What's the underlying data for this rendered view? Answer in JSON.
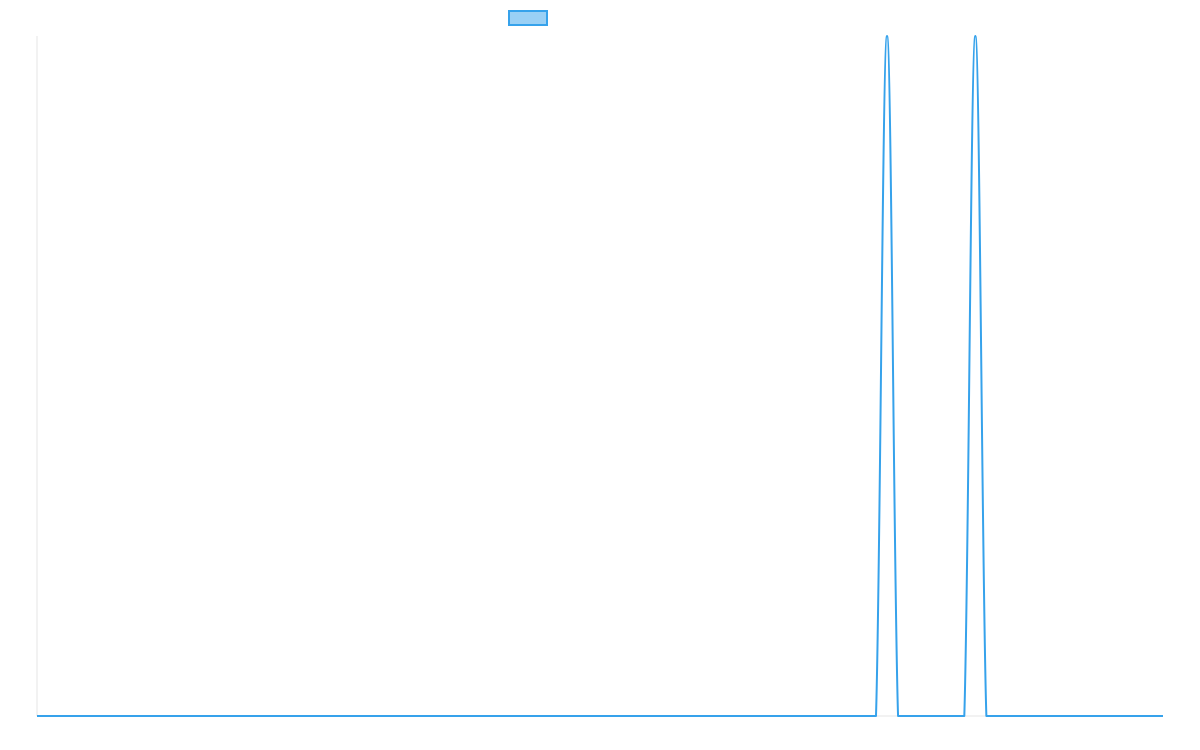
{
  "chart_data": {
    "type": "line",
    "title": "",
    "xlabel": "",
    "ylabel": "",
    "grid": false,
    "legend_position": "top",
    "x": [
      0,
      1,
      2,
      3,
      4,
      5,
      6,
      7,
      8,
      9,
      10,
      11,
      12,
      13,
      14,
      15,
      16,
      17,
      18,
      19,
      20,
      21,
      22,
      23,
      24,
      25,
      26,
      27,
      28,
      29,
      30,
      31,
      32,
      33,
      34,
      35,
      36,
      37,
      38,
      39,
      40,
      41,
      42,
      43,
      44,
      45,
      46,
      47,
      48,
      49,
      50,
      51,
      52,
      53,
      54,
      55,
      56,
      57,
      58,
      59,
      60,
      61,
      62,
      63,
      64,
      65,
      66,
      67,
      68,
      69,
      70,
      71,
      72,
      73,
      74,
      75,
      76,
      77,
      78,
      79,
      80,
      81,
      82,
      83,
      84,
      85,
      86,
      87,
      88,
      89,
      90,
      91,
      92,
      93,
      94,
      95,
      96,
      97,
      98,
      99,
      100,
      101,
      102
    ],
    "xlim": [
      0,
      102
    ],
    "ylim": [
      0,
      1
    ],
    "series": [
      {
        "name": "",
        "color": "#36a2eb",
        "fill": "#9ad0f5",
        "values": [
          0,
          0,
          0,
          0,
          0,
          0,
          0,
          0,
          0,
          0,
          0,
          0,
          0,
          0,
          0,
          0,
          0,
          0,
          0,
          0,
          0,
          0,
          0,
          0,
          0,
          0,
          0,
          0,
          0,
          0,
          0,
          0,
          0,
          0,
          0,
          0,
          0,
          0,
          0,
          0,
          0,
          0,
          0,
          0,
          0,
          0,
          0,
          0,
          0,
          0,
          0,
          0,
          0,
          0,
          0,
          0,
          0,
          0,
          0,
          0,
          0,
          0,
          0,
          0,
          0,
          0,
          0,
          0,
          0,
          0,
          0,
          0,
          0,
          0,
          0,
          0,
          0,
          1,
          0,
          0,
          0,
          0,
          0,
          0,
          0,
          1,
          0,
          0,
          0,
          0,
          0,
          0,
          0,
          0,
          0,
          0,
          0,
          0,
          0,
          0,
          0,
          0,
          0
        ]
      }
    ]
  }
}
